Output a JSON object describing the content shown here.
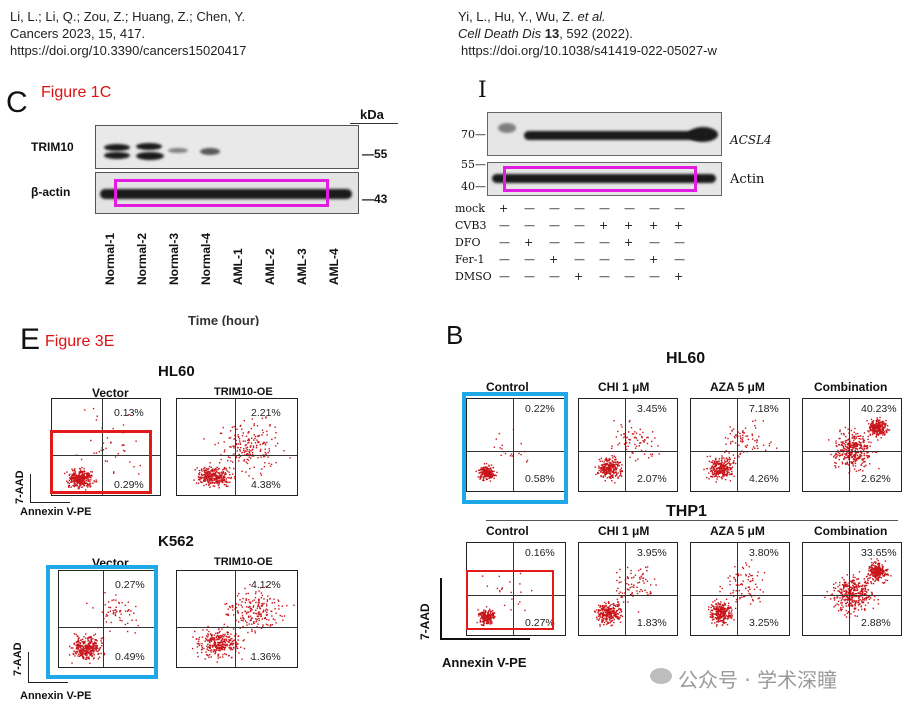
{
  "citation_left": {
    "line1": "Li, L.; Li, Q.; Zou, Z.; Huang, Z.; Chen, Y.",
    "line2": "Cancers 2023, 15, 417.",
    "line3": "https://doi.org/10.3390/cancers15020417"
  },
  "citation_right": {
    "authors": "Yi, L., Hu, Y., Wu, Z.",
    "etal": "et al.",
    "journal": "Cell Death Dis",
    "volume": "13",
    "rest": ", 592 (2022).",
    "doi": "https://doi.org/10.1038/s41419-022-05027-w"
  },
  "panel_c": {
    "letter": "C",
    "figure_label": "Figure 1C",
    "kda": "kDa",
    "row1": "TRIM10",
    "row2": "β-actin",
    "marker1": "—55",
    "marker2": "—43",
    "lanes": [
      "Normal-1",
      "Normal-2",
      "Normal-3",
      "Normal-4",
      "AML-1",
      "AML-2",
      "AML-3",
      "AML-4"
    ]
  },
  "panel_i": {
    "letter": "I",
    "marker70": "70—",
    "marker55": "55—",
    "marker40": "40—",
    "row1": "ACSL4",
    "row2": "Actin",
    "conditions": [
      {
        "name": "mock",
        "signs": [
          "+",
          "—",
          "—",
          "—",
          "—",
          "—",
          "—",
          "—"
        ]
      },
      {
        "name": "CVB3",
        "signs": [
          "—",
          "—",
          "—",
          "—",
          "+",
          "+",
          "+",
          "+"
        ]
      },
      {
        "name": "DFO",
        "signs": [
          "—",
          "+",
          "—",
          "—",
          "—",
          "+",
          "—",
          "—"
        ]
      },
      {
        "name": "Fer-1",
        "signs": [
          "—",
          "—",
          "+",
          "—",
          "—",
          "—",
          "+",
          "—"
        ]
      },
      {
        "name": "DMSO",
        "signs": [
          "—",
          "—",
          "—",
          "+",
          "—",
          "—",
          "—",
          "+"
        ]
      }
    ]
  },
  "cut_text": "Time (hour)",
  "panel_e": {
    "letter": "E",
    "figure_label": "Figure 3E",
    "hl60": "HL60",
    "k562": "K562",
    "vector": "Vector",
    "trim_oe": "TRIM10-OE",
    "y_axis": "7-AAD",
    "x_axis": "Annexin V-PE",
    "hl60_vector_upper": "0.13%",
    "hl60_vector_lower": "0.29%",
    "hl60_oe_upper": "2.21%",
    "hl60_oe_lower": "4.38%",
    "k562_vector_upper": "0.27%",
    "k562_vector_lower": "0.49%",
    "k562_oe_upper": "4.12%",
    "k562_oe_lower": "1.36%"
  },
  "panel_b": {
    "letter": "B",
    "hl60": "HL60",
    "thp1": "THP1",
    "columns": [
      "Control",
      "CHI 1 μM",
      "AZA 5 μM",
      "Combination"
    ],
    "hl60_upper": [
      "0.22%",
      "3.45%",
      "7.18%",
      "40.23%"
    ],
    "hl60_lower": [
      "0.58%",
      "2.07%",
      "4.26%",
      "2.62%"
    ],
    "thp1_upper": [
      "0.16%",
      "3.95%",
      "3.80%",
      "33.65%"
    ],
    "thp1_lower": [
      "0.27%",
      "1.83%",
      "3.25%",
      "2.88%"
    ],
    "y_axis": "7-AAD",
    "x_axis": "Annexin V-PE"
  },
  "watermark": "公众号 · 学术深瞳",
  "colors": {
    "magenta": "#e21ce0",
    "red": "#e21a1a",
    "blue": "#1fa8e8",
    "dot": "#c8141a"
  }
}
